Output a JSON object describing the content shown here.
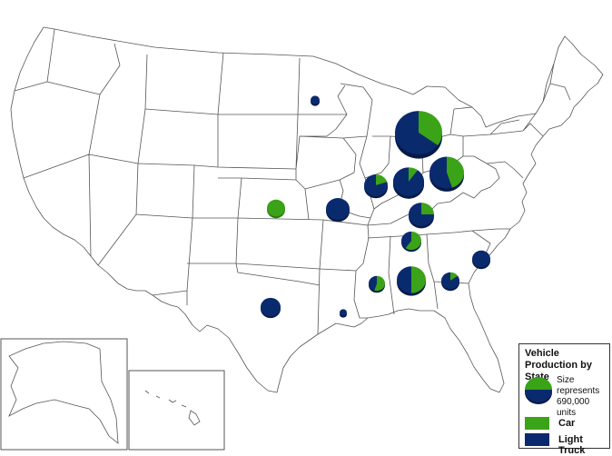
{
  "legend": {
    "title": "Vehicle Production by State",
    "size_text": "Size represents 690,000 units",
    "car_label": "Car",
    "truck_label": "Light Truck"
  },
  "colors": {
    "car": "#3aa317",
    "truck": "#0a2a6e",
    "state_border": "#555555",
    "land": "#ffffff"
  },
  "pies": [
    {
      "state": "Minnesota",
      "car": 0.0,
      "truck": 1.0
    },
    {
      "state": "Michigan",
      "car": 0.35,
      "truck": 0.65
    },
    {
      "state": "Wisconsin",
      "car": 0.2,
      "truck": 0.8
    },
    {
      "state": "Illinois",
      "car": 0.22,
      "truck": 0.78
    },
    {
      "state": "Indiana",
      "car": 0.1,
      "truck": 0.9
    },
    {
      "state": "Ohio",
      "car": 0.45,
      "truck": 0.55
    },
    {
      "state": "Kansas",
      "car": 1.0,
      "truck": 0.0
    },
    {
      "state": "Missouri",
      "car": 0.0,
      "truck": 1.0
    },
    {
      "state": "Kentucky",
      "car": 0.25,
      "truck": 0.75
    },
    {
      "state": "Tennessee",
      "car": 0.6,
      "truck": 0.4
    },
    {
      "state": "South Carolina",
      "car": 0.0,
      "truck": 1.0
    },
    {
      "state": "Mississippi",
      "car": 0.55,
      "truck": 0.45
    },
    {
      "state": "Alabama",
      "car": 0.5,
      "truck": 0.5
    },
    {
      "state": "Georgia",
      "car": 0.15,
      "truck": 0.85
    },
    {
      "state": "Texas",
      "car": 0.0,
      "truck": 1.0
    },
    {
      "state": "Louisiana",
      "car": 0.0,
      "truck": 1.0
    }
  ]
}
